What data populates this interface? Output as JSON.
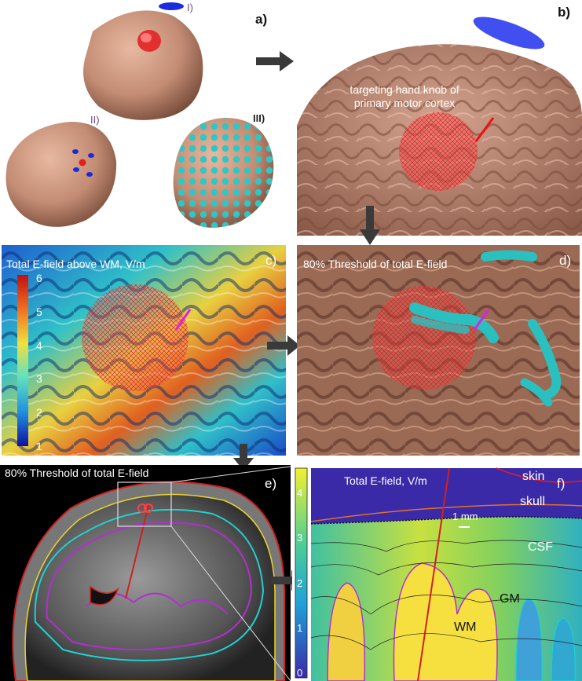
{
  "panels": {
    "a": {
      "label": "a)",
      "sub_i": "I)",
      "sub_ii": "II)",
      "sub_iii": "III)"
    },
    "b": {
      "label": "b)",
      "caption_line1": "targeting hand knob of",
      "caption_line2": "primary motor cortex"
    },
    "c": {
      "label": "c)",
      "title": "Total E-field above WM, V/m",
      "colorbar_ticks": [
        "6",
        "5",
        "4",
        "3",
        "2",
        "1"
      ]
    },
    "d": {
      "label": "d)",
      "title": "80% Threshold of total E-field"
    },
    "e": {
      "label": "e)",
      "title": "80% Threshold of total E-field"
    },
    "f": {
      "label": "f)",
      "title": "Total E-field, V/m",
      "colorbar_ticks": [
        "4",
        "3",
        "2",
        "1",
        "0"
      ],
      "tissue_skin": "skin",
      "tissue_skull": "skull",
      "tissue_csf": "CSF",
      "tissue_gm": "GM",
      "tissue_wm": "WM",
      "scale_bar": "1 mm"
    }
  },
  "colors": {
    "skin_tone": "#c9937c",
    "coil": "#1a1aff",
    "target": "#e02020",
    "cyan": "#22c8c8",
    "background_f": "#3a2aa8"
  }
}
